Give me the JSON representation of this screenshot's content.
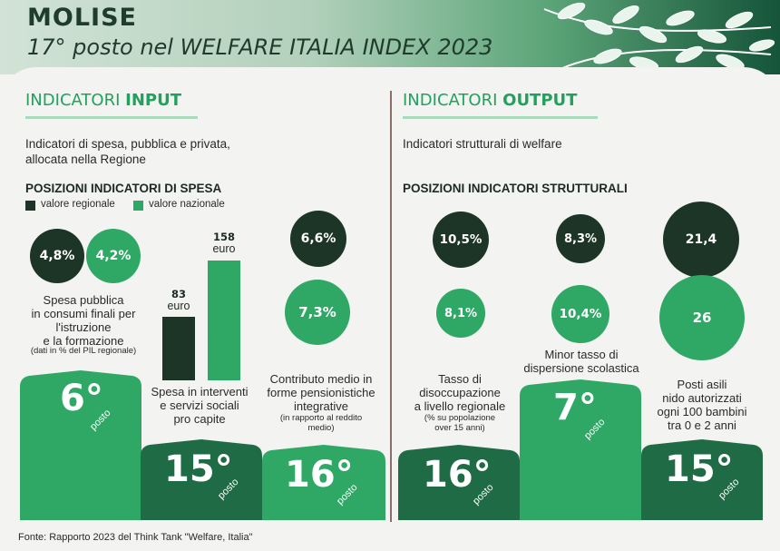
{
  "header": {
    "region": "MOLISE",
    "subtitle": "17° posto nel WELFARE ITALIA INDEX 2023"
  },
  "input": {
    "title_light": "INDICATORI",
    "title_bold": "INPUT",
    "description_line1": "Indicatori di spesa, pubblica e privata,",
    "description_line2": "allocata nella Regione",
    "positions_title": "POSIZIONI INDICATORI DI SPESA",
    "legend": {
      "regional": "valore regionale",
      "national": "valore nazionale"
    },
    "education": {
      "regional": "4,8%",
      "national": "4,2%",
      "caption_lines": [
        "Spesa pubblica",
        "in consumi finali per",
        "l'istruzione",
        "e la formazione"
      ],
      "note": "(dati in % del PIL regionale)",
      "rank": "6°",
      "rank_word": "posto"
    },
    "social": {
      "regional_value": "83",
      "regional_unit": "euro",
      "national_value": "158",
      "national_unit": "euro",
      "caption_lines": [
        "Spesa in interventi",
        "e servizi sociali",
        "pro capite"
      ],
      "rank": "15°",
      "rank_word": "posto"
    },
    "pension": {
      "regional": "6,6%",
      "national": "7,3%",
      "caption_lines": [
        "Contributo medio in",
        "forme pensionistiche",
        "integrative"
      ],
      "note_lines": [
        "(in rapporto al reddito",
        "medio)"
      ],
      "rank": "16°",
      "rank_word": "posto"
    }
  },
  "output": {
    "title_light": "INDICATORI",
    "title_bold": "OUTPUT",
    "description": "Indicatori strutturali di welfare",
    "positions_title": "POSIZIONI INDICATORI STRUTTURALI",
    "unemployment": {
      "regional": "10,5%",
      "national": "8,1%",
      "caption_lines": [
        "Tasso di",
        "disoccupazione",
        "a livello regionale"
      ],
      "note_lines": [
        "(% su popolazione",
        "over 15 anni)"
      ],
      "rank": "16°",
      "rank_word": "posto"
    },
    "dropout": {
      "regional": "8,3%",
      "national": "10,4%",
      "caption_lines": [
        "Minor tasso di",
        "dispersione scolastica"
      ],
      "rank": "7°",
      "rank_word": "posto"
    },
    "nursery": {
      "regional": "21,4",
      "national": "26",
      "caption_lines": [
        "Posti asili",
        "nido autorizzati",
        "ogni 100 bambini",
        "tra 0 e 2 anni"
      ],
      "rank": "15°",
      "rank_word": "posto"
    }
  },
  "footer": {
    "source": "Fonte: Rapporto 2023 del Think Tank \"Welfare, Italia\""
  },
  "colors": {
    "dark_green": "#1c3527",
    "bright_green": "#2fa866",
    "title_green": "#1fa25e"
  }
}
